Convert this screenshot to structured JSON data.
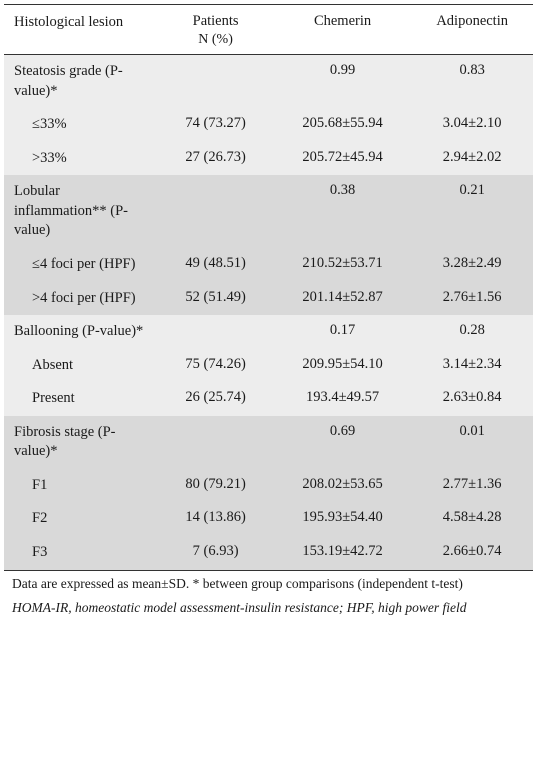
{
  "table": {
    "background_light": "#ededed",
    "background_dark": "#d9d9d9",
    "border_color": "#333333",
    "font_family": "Times New Roman",
    "font_size_pt": 11,
    "columns": [
      {
        "key": "lesion",
        "header": "Histological lesion",
        "align": "left"
      },
      {
        "key": "patients",
        "header": "Patients",
        "subheader": "N  (%)",
        "align": "center"
      },
      {
        "key": "chemerin",
        "header": "Chemerin",
        "align": "center"
      },
      {
        "key": "adiponectin",
        "header": "Adiponectin",
        "align": "center"
      }
    ],
    "groups": [
      {
        "shade": "light",
        "header": {
          "lesion": "Steatosis grade (P-value)*",
          "patients": "",
          "chemerin": "0.99",
          "adiponectin": "0.83"
        },
        "rows": [
          {
            "lesion": "≤33%",
            "patients": "74 (73.27)",
            "chemerin": "205.68±55.94",
            "adiponectin": "3.04±2.10"
          },
          {
            "lesion": ">33%",
            "patients": "27 (26.73)",
            "chemerin": "205.72±45.94",
            "adiponectin": "2.94±2.02"
          }
        ]
      },
      {
        "shade": "dark",
        "header": {
          "lesion": "Lobular inflammation** (P-value)",
          "patients": "",
          "chemerin": "0.38",
          "adiponectin": "0.21"
        },
        "rows": [
          {
            "lesion": "≤4 foci per (HPF)",
            "patients": "49 (48.51)",
            "chemerin": "210.52±53.71",
            "adiponectin": "3.28±2.49"
          },
          {
            "lesion": ">4 foci per (HPF)",
            "patients": "52 (51.49)",
            "chemerin": "201.14±52.87",
            "adiponectin": "2.76±1.56"
          }
        ]
      },
      {
        "shade": "light",
        "header": {
          "lesion": "Ballooning (P-value)*",
          "patients": "",
          "chemerin": "0.17",
          "adiponectin": "0.28"
        },
        "rows": [
          {
            "lesion": "Absent",
            "patients": "75 (74.26)",
            "chemerin": "209.95±54.10",
            "adiponectin": "3.14±2.34"
          },
          {
            "lesion": "Present",
            "patients": "26 (25.74)",
            "chemerin": "193.4±49.57",
            "adiponectin": "2.63±0.84"
          }
        ]
      },
      {
        "shade": "dark",
        "header": {
          "lesion": "Fibrosis stage (P-value)*",
          "patients": "",
          "chemerin": "0.69",
          "adiponectin": "0.01"
        },
        "rows": [
          {
            "lesion": "F1",
            "patients": "80 (79.21)",
            "chemerin": "208.02±53.65",
            "adiponectin": "2.77±1.36"
          },
          {
            "lesion": "F2",
            "patients": "14 (13.86)",
            "chemerin": "195.93±54.40",
            "adiponectin": "4.58±4.28"
          },
          {
            "lesion": "F3",
            "patients": "7 (6.93)",
            "chemerin": "153.19±42.72",
            "adiponectin": "2.66±0.74"
          }
        ]
      }
    ],
    "footnotes": {
      "line1": "Data are expressed as mean±SD. * between group comparisons (independent t-test)",
      "line2": "HOMA-IR, homeostatic model assessment-insulin resistance; HPF, high power field"
    }
  }
}
